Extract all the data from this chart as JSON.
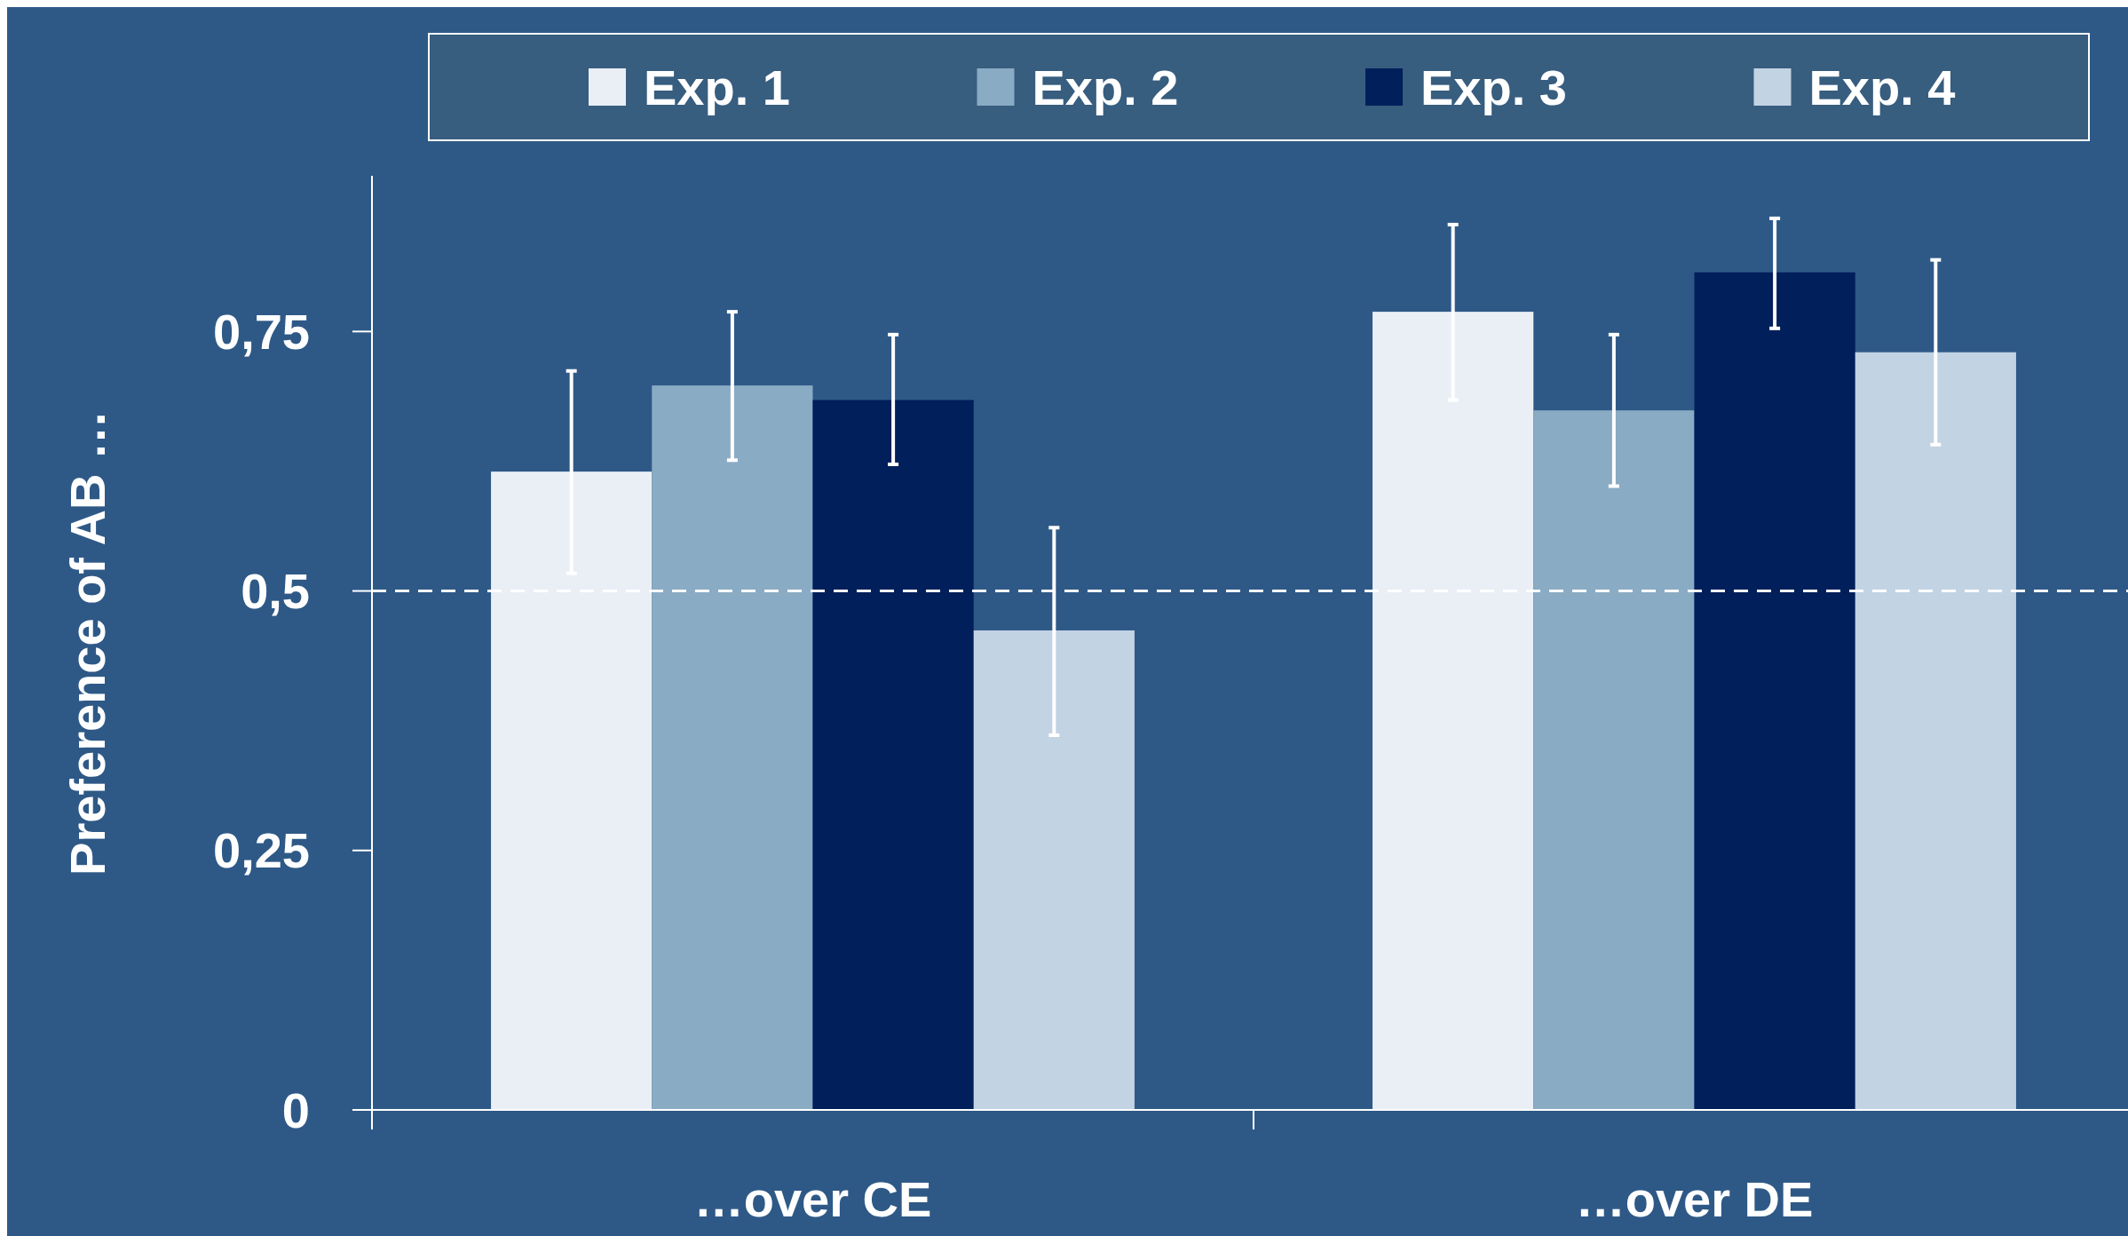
{
  "chart_data": {
    "type": "bar",
    "ylabel": "Preference of AB …",
    "categories": [
      "…over CE",
      "…over DE"
    ],
    "series": [
      {
        "name": "Exp. 1",
        "color": "#eaeff6",
        "values": [
          0.615,
          0.769
        ],
        "errors": [
          [
            0.517,
            0.712
          ],
          [
            0.684,
            0.853
          ]
        ]
      },
      {
        "name": "Exp. 2",
        "color": "#8aabc4",
        "values": [
          0.698,
          0.674
        ],
        "errors": [
          [
            0.626,
            0.769
          ],
          [
            0.601,
            0.747
          ]
        ]
      },
      {
        "name": "Exp. 3",
        "color": "#001f5b",
        "values": [
          0.684,
          0.807
        ],
        "errors": [
          [
            0.622,
            0.747
          ],
          [
            0.753,
            0.859
          ]
        ]
      },
      {
        "name": "Exp. 4",
        "color": "#c2d3e4",
        "values": [
          0.462,
          0.73
        ],
        "errors": [
          [
            0.361,
            0.561
          ],
          [
            0.641,
            0.819
          ]
        ]
      }
    ],
    "ylim": [
      0,
      0.9
    ],
    "yticks": [
      0,
      {
        "value": 0.25,
        "label": "0,25"
      },
      {
        "value": 0.5,
        "label": "0,5"
      },
      {
        "value": 0.75,
        "label": "0,75"
      }
    ],
    "ref_lines": [
      {
        "axis": "y",
        "value": 0.5,
        "color": "#ffffff",
        "line_style": "dashed"
      }
    ],
    "legend": "top",
    "grid": false
  }
}
